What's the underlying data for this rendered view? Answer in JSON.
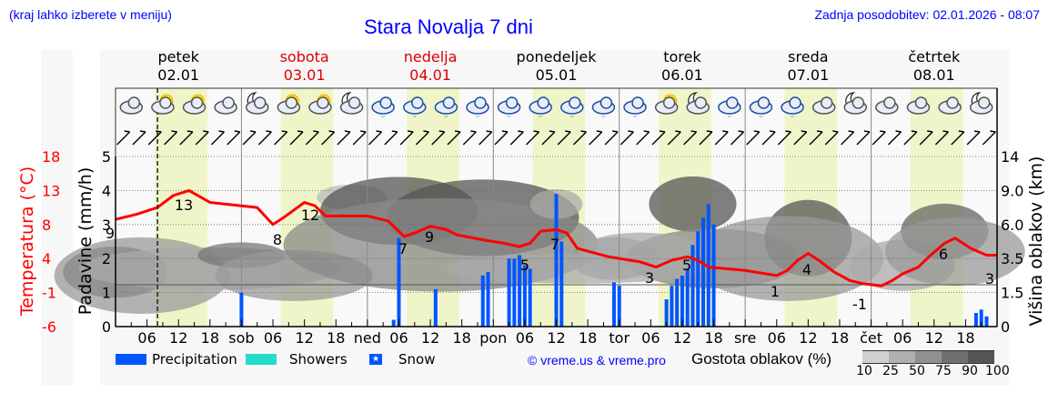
{
  "header": {
    "left_note": "(kraj lahko izberete v meniju)",
    "title": "Stara Novalja 7 dni",
    "updated": "Zadnja posodobitev: 02.01.2026 - 08:07"
  },
  "days": [
    {
      "name": "petek",
      "date": "02.01",
      "weekend": false
    },
    {
      "name": "sobota",
      "date": "03.01",
      "weekend": true
    },
    {
      "name": "nedelja",
      "date": "04.01",
      "weekend": true
    },
    {
      "name": "ponedeljek",
      "date": "05.01",
      "weekend": false
    },
    {
      "name": "torek",
      "date": "06.01",
      "weekend": false
    },
    {
      "name": "sreda",
      "date": "07.01",
      "weekend": false
    },
    {
      "name": "četrtek",
      "date": "08.01",
      "weekend": false
    }
  ],
  "legend": {
    "precipitation": "Precipitation",
    "showers": "Showers",
    "snow": "Snow",
    "credit": "© vreme.us & vreme.pro",
    "cloud_density_label": "Gostota oblakov (%)",
    "cloud_density_ticks": [
      "10",
      "25",
      "50",
      "75",
      "90",
      "100"
    ]
  },
  "colors": {
    "precipitation": "#0055ff",
    "showers": "#22ddcc",
    "temperature": "#ff0000",
    "daylight": "#eff5c8",
    "title": "#0000ff",
    "weekend": "#dd0000"
  },
  "chart_data": {
    "type": "line+bar",
    "title": "Stara Novalja 7 dni",
    "x_ticks": [
      "06",
      "12",
      "18",
      "sob",
      "06",
      "12",
      "18",
      "ned",
      "06",
      "12",
      "18",
      "pon",
      "06",
      "12",
      "18",
      "tor",
      "06",
      "12",
      "18",
      "sre",
      "06",
      "12",
      "18",
      "čet",
      "06",
      "12",
      "18"
    ],
    "left_axis_temperature": {
      "label": "Temperatura (°C)",
      "ticks": [
        "18",
        "13",
        "8",
        "4",
        "-1",
        "-6"
      ]
    },
    "left_axis_precip": {
      "label": "Padavine (mm/h)",
      "ticks": [
        "5",
        "4",
        "3",
        "2",
        "1",
        "0"
      ],
      "ylim": [
        0,
        5
      ]
    },
    "right_axis_cloud_height": {
      "label": "Višina oblakov (km)",
      "ticks": [
        "14",
        "9.0",
        "6.0",
        "3.5",
        "1.5",
        "0"
      ]
    },
    "temperature_labels": [
      {
        "hour": 0,
        "value": "9"
      },
      {
        "hour": 13,
        "value": "13"
      },
      {
        "hour": 30,
        "value": "8"
      },
      {
        "hour": 37,
        "value": "12"
      },
      {
        "hour": 55,
        "value": "7"
      },
      {
        "hour": 60,
        "value": "9"
      },
      {
        "hour": 77,
        "value": "5"
      },
      {
        "hour": 84,
        "value": "7"
      },
      {
        "hour": 102,
        "value": "3"
      },
      {
        "hour": 109,
        "value": "5"
      },
      {
        "hour": 126,
        "value": "1"
      },
      {
        "hour": 132,
        "value": "4"
      },
      {
        "hour": 150,
        "value": "-1"
      },
      {
        "hour": 157,
        "value": "6"
      },
      {
        "hour": 167,
        "value": "3"
      }
    ],
    "temperature_series_precip_scale": [
      [
        0,
        3.15
      ],
      [
        4,
        3.3
      ],
      [
        6,
        3.4
      ],
      [
        8,
        3.5
      ],
      [
        11,
        3.85
      ],
      [
        14,
        4.0
      ],
      [
        18,
        3.65
      ],
      [
        24,
        3.55
      ],
      [
        27,
        3.5
      ],
      [
        30,
        3.0
      ],
      [
        32,
        3.2
      ],
      [
        36,
        3.65
      ],
      [
        38,
        3.55
      ],
      [
        40,
        3.25
      ],
      [
        48,
        3.25
      ],
      [
        52,
        3.1
      ],
      [
        55,
        2.65
      ],
      [
        57,
        2.75
      ],
      [
        60,
        2.95
      ],
      [
        63,
        2.85
      ],
      [
        65,
        2.7
      ],
      [
        70,
        2.55
      ],
      [
        74,
        2.45
      ],
      [
        77,
        2.35
      ],
      [
        79,
        2.45
      ],
      [
        81,
        2.8
      ],
      [
        84,
        2.85
      ],
      [
        86,
        2.75
      ],
      [
        88,
        2.3
      ],
      [
        94,
        2.05
      ],
      [
        100,
        1.9
      ],
      [
        103,
        1.75
      ],
      [
        106,
        1.95
      ],
      [
        109,
        2.05
      ],
      [
        111,
        1.95
      ],
      [
        113,
        1.75
      ],
      [
        120,
        1.65
      ],
      [
        124,
        1.55
      ],
      [
        126,
        1.5
      ],
      [
        128,
        1.65
      ],
      [
        130,
        1.95
      ],
      [
        132,
        2.15
      ],
      [
        134,
        1.95
      ],
      [
        137,
        1.6
      ],
      [
        140,
        1.35
      ],
      [
        143,
        1.25
      ],
      [
        146,
        1.2
      ],
      [
        148,
        1.35
      ],
      [
        150,
        1.55
      ],
      [
        153,
        1.75
      ],
      [
        155,
        2.05
      ],
      [
        158,
        2.45
      ],
      [
        160,
        2.6
      ],
      [
        163,
        2.3
      ],
      [
        166,
        2.1
      ],
      [
        168,
        2.1
      ]
    ],
    "precip_bars": [
      {
        "hour": 24,
        "mm": 1.0
      },
      {
        "hour": 53,
        "mm": 0.2
      },
      {
        "hour": 54,
        "mm": 2.6
      },
      {
        "hour": 61,
        "mm": 1.1
      },
      {
        "hour": 70,
        "mm": 1.5
      },
      {
        "hour": 71,
        "mm": 1.6
      },
      {
        "hour": 75,
        "mm": 2.0
      },
      {
        "hour": 76,
        "mm": 2.0
      },
      {
        "hour": 77,
        "mm": 2.1
      },
      {
        "hour": 78,
        "mm": 1.8
      },
      {
        "hour": 79,
        "mm": 1.7
      },
      {
        "hour": 84,
        "mm": 3.9
      },
      {
        "hour": 85,
        "mm": 2.5
      },
      {
        "hour": 95,
        "mm": 1.3
      },
      {
        "hour": 96,
        "mm": 1.2
      },
      {
        "hour": 105,
        "mm": 0.8
      },
      {
        "hour": 106,
        "mm": 1.2
      },
      {
        "hour": 107,
        "mm": 1.4
      },
      {
        "hour": 108,
        "mm": 1.5
      },
      {
        "hour": 109,
        "mm": 1.7
      },
      {
        "hour": 110,
        "mm": 2.4
      },
      {
        "hour": 111,
        "mm": 2.8
      },
      {
        "hour": 112,
        "mm": 3.2
      },
      {
        "hour": 113,
        "mm": 3.6
      },
      {
        "hour": 114,
        "mm": 3.0
      },
      {
        "hour": 164,
        "mm": 0.4
      },
      {
        "hour": 165,
        "mm": 0.5
      },
      {
        "hour": 166,
        "mm": 0.3
      }
    ],
    "current_time_hour": 8,
    "daylight_hours": [
      7.5,
      17.5
    ]
  }
}
